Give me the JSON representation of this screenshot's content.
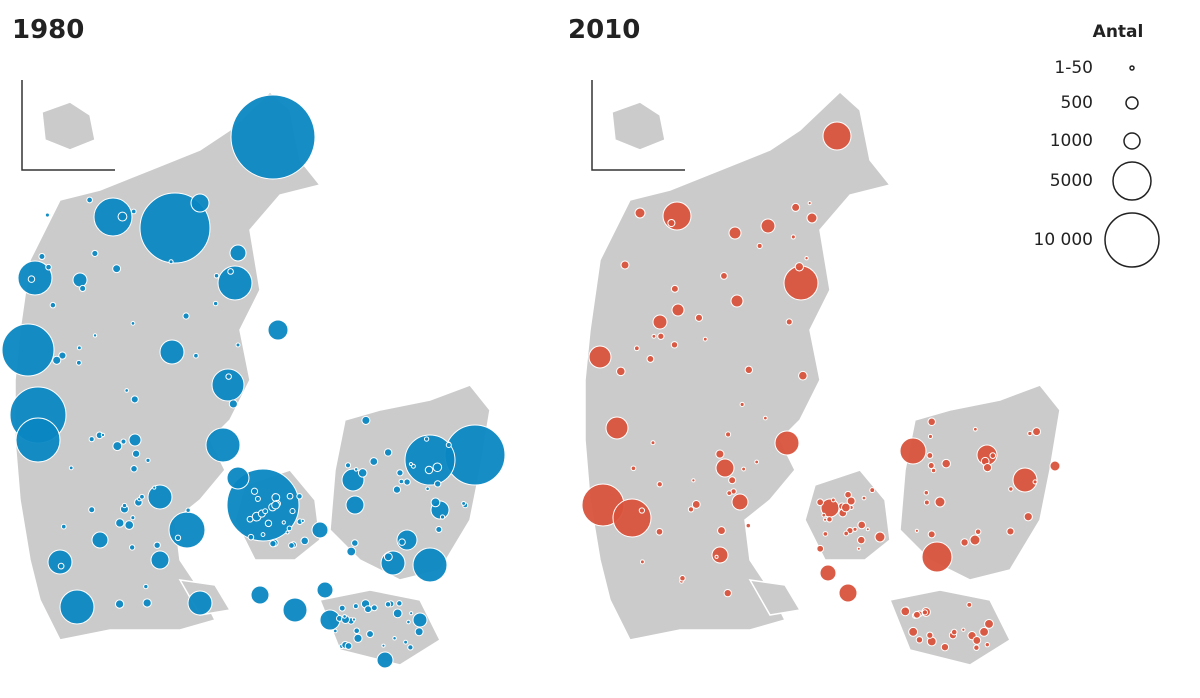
{
  "maps": [
    {
      "title": "1980"
    },
    {
      "title": "2010"
    }
  ],
  "legend": {
    "title": "Antal",
    "items": [
      "1-50",
      "500",
      "1000",
      "5000",
      "10 000"
    ]
  }
}
